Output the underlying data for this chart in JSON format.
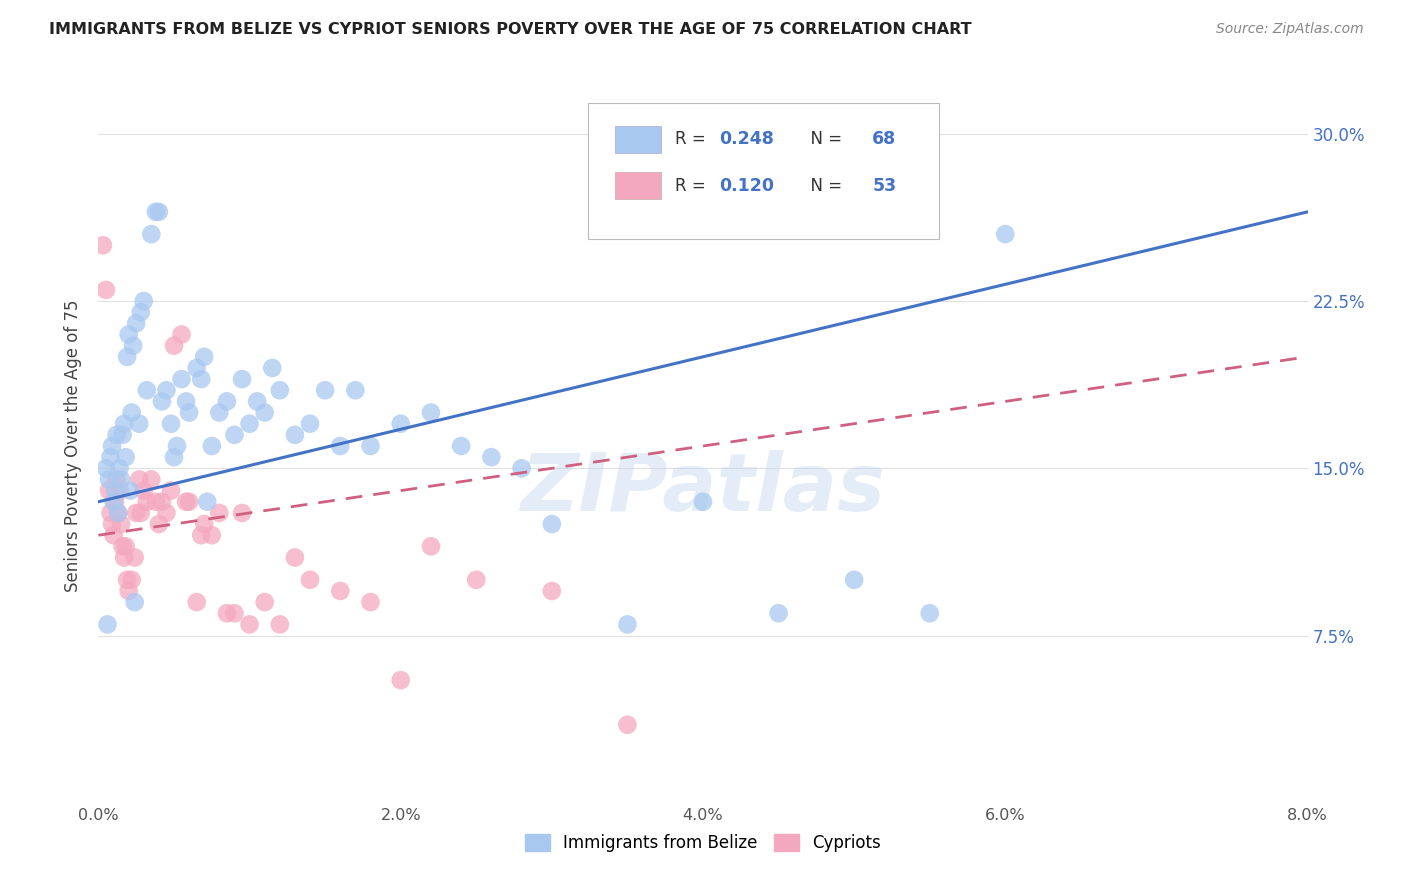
{
  "title": "IMMIGRANTS FROM BELIZE VS CYPRIOT SENIORS POVERTY OVER THE AGE OF 75 CORRELATION CHART",
  "source": "Source: ZipAtlas.com",
  "ylabel": "Seniors Poverty Over the Age of 75",
  "x_tick_labels": [
    "0.0%",
    "2.0%",
    "4.0%",
    "6.0%",
    "8.0%"
  ],
  "x_tick_vals": [
    0.0,
    2.0,
    4.0,
    6.0,
    8.0
  ],
  "y_tick_labels": [
    "7.5%",
    "15.0%",
    "22.5%",
    "30.0%"
  ],
  "y_tick_vals": [
    7.5,
    15.0,
    22.5,
    30.0
  ],
  "xlim": [
    0.0,
    8.0
  ],
  "ylim": [
    0.0,
    32.0
  ],
  "blue_color": "#A8C8F0",
  "pink_color": "#F4A8C0",
  "blue_line_color": "#4472C4",
  "pink_line_color": "#D06080",
  "title_color": "#222222",
  "source_color": "#888888",
  "axis_label_color": "#444444",
  "tick_color_right": "#4472C4",
  "watermark": "ZIPatlas",
  "background_color": "#FFFFFF",
  "grid_color": "#E0E0E0",
  "blue_r": "0.248",
  "blue_n": "68",
  "pink_r": "0.120",
  "pink_n": "53",
  "legend_blue_label": "Immigrants from Belize",
  "legend_pink_label": "Cypriots",
  "blue_line_x0": 0.0,
  "blue_line_y0": 13.5,
  "blue_line_x1": 8.0,
  "blue_line_y1": 26.5,
  "pink_line_x0": 0.0,
  "pink_line_y0": 12.0,
  "pink_line_x1": 8.0,
  "pink_line_y1": 20.0,
  "blue_x": [
    0.05,
    0.07,
    0.08,
    0.09,
    0.1,
    0.11,
    0.12,
    0.13,
    0.14,
    0.15,
    0.16,
    0.17,
    0.18,
    0.19,
    0.2,
    0.21,
    0.22,
    0.23,
    0.25,
    0.27,
    0.28,
    0.3,
    0.32,
    0.35,
    0.38,
    0.4,
    0.42,
    0.45,
    0.48,
    0.5,
    0.55,
    0.58,
    0.6,
    0.65,
    0.68,
    0.7,
    0.75,
    0.8,
    0.85,
    0.9,
    0.95,
    1.0,
    1.05,
    1.1,
    1.15,
    1.2,
    1.3,
    1.4,
    1.5,
    1.6,
    1.7,
    1.8,
    2.0,
    2.2,
    2.4,
    2.6,
    2.8,
    3.0,
    3.5,
    4.0,
    4.5,
    5.0,
    5.5,
    6.0,
    0.06,
    0.24,
    0.52,
    0.72
  ],
  "blue_y": [
    15.0,
    14.5,
    15.5,
    16.0,
    13.5,
    14.0,
    16.5,
    13.0,
    15.0,
    14.5,
    16.5,
    17.0,
    15.5,
    20.0,
    21.0,
    14.0,
    17.5,
    20.5,
    21.5,
    17.0,
    22.0,
    22.5,
    18.5,
    25.5,
    26.5,
    26.5,
    18.0,
    18.5,
    17.0,
    15.5,
    19.0,
    18.0,
    17.5,
    19.5,
    19.0,
    20.0,
    16.0,
    17.5,
    18.0,
    16.5,
    19.0,
    17.0,
    18.0,
    17.5,
    19.5,
    18.5,
    16.5,
    17.0,
    18.5,
    16.0,
    18.5,
    16.0,
    17.0,
    17.5,
    16.0,
    15.5,
    15.0,
    12.5,
    8.0,
    13.5,
    8.5,
    10.0,
    8.5,
    25.5,
    8.0,
    9.0,
    16.0,
    13.5
  ],
  "pink_x": [
    0.03,
    0.05,
    0.07,
    0.08,
    0.09,
    0.1,
    0.11,
    0.12,
    0.13,
    0.14,
    0.15,
    0.16,
    0.17,
    0.18,
    0.19,
    0.2,
    0.22,
    0.24,
    0.25,
    0.27,
    0.3,
    0.32,
    0.35,
    0.38,
    0.4,
    0.45,
    0.5,
    0.55,
    0.6,
    0.65,
    0.7,
    0.75,
    0.8,
    0.9,
    1.0,
    1.1,
    1.2,
    1.4,
    1.6,
    2.0,
    2.5,
    3.0,
    3.5,
    0.28,
    0.42,
    0.48,
    0.58,
    0.68,
    0.85,
    0.95,
    1.3,
    1.8,
    2.2
  ],
  "pink_y": [
    25.0,
    23.0,
    14.0,
    13.0,
    12.5,
    12.0,
    13.5,
    14.5,
    13.0,
    14.0,
    12.5,
    11.5,
    11.0,
    11.5,
    10.0,
    9.5,
    10.0,
    11.0,
    13.0,
    14.5,
    14.0,
    13.5,
    14.5,
    13.5,
    12.5,
    13.0,
    20.5,
    21.0,
    13.5,
    9.0,
    12.5,
    12.0,
    13.0,
    8.5,
    8.0,
    9.0,
    8.0,
    10.0,
    9.5,
    5.5,
    10.0,
    9.5,
    3.5,
    13.0,
    13.5,
    14.0,
    13.5,
    12.0,
    8.5,
    13.0,
    11.0,
    9.0,
    11.5
  ]
}
